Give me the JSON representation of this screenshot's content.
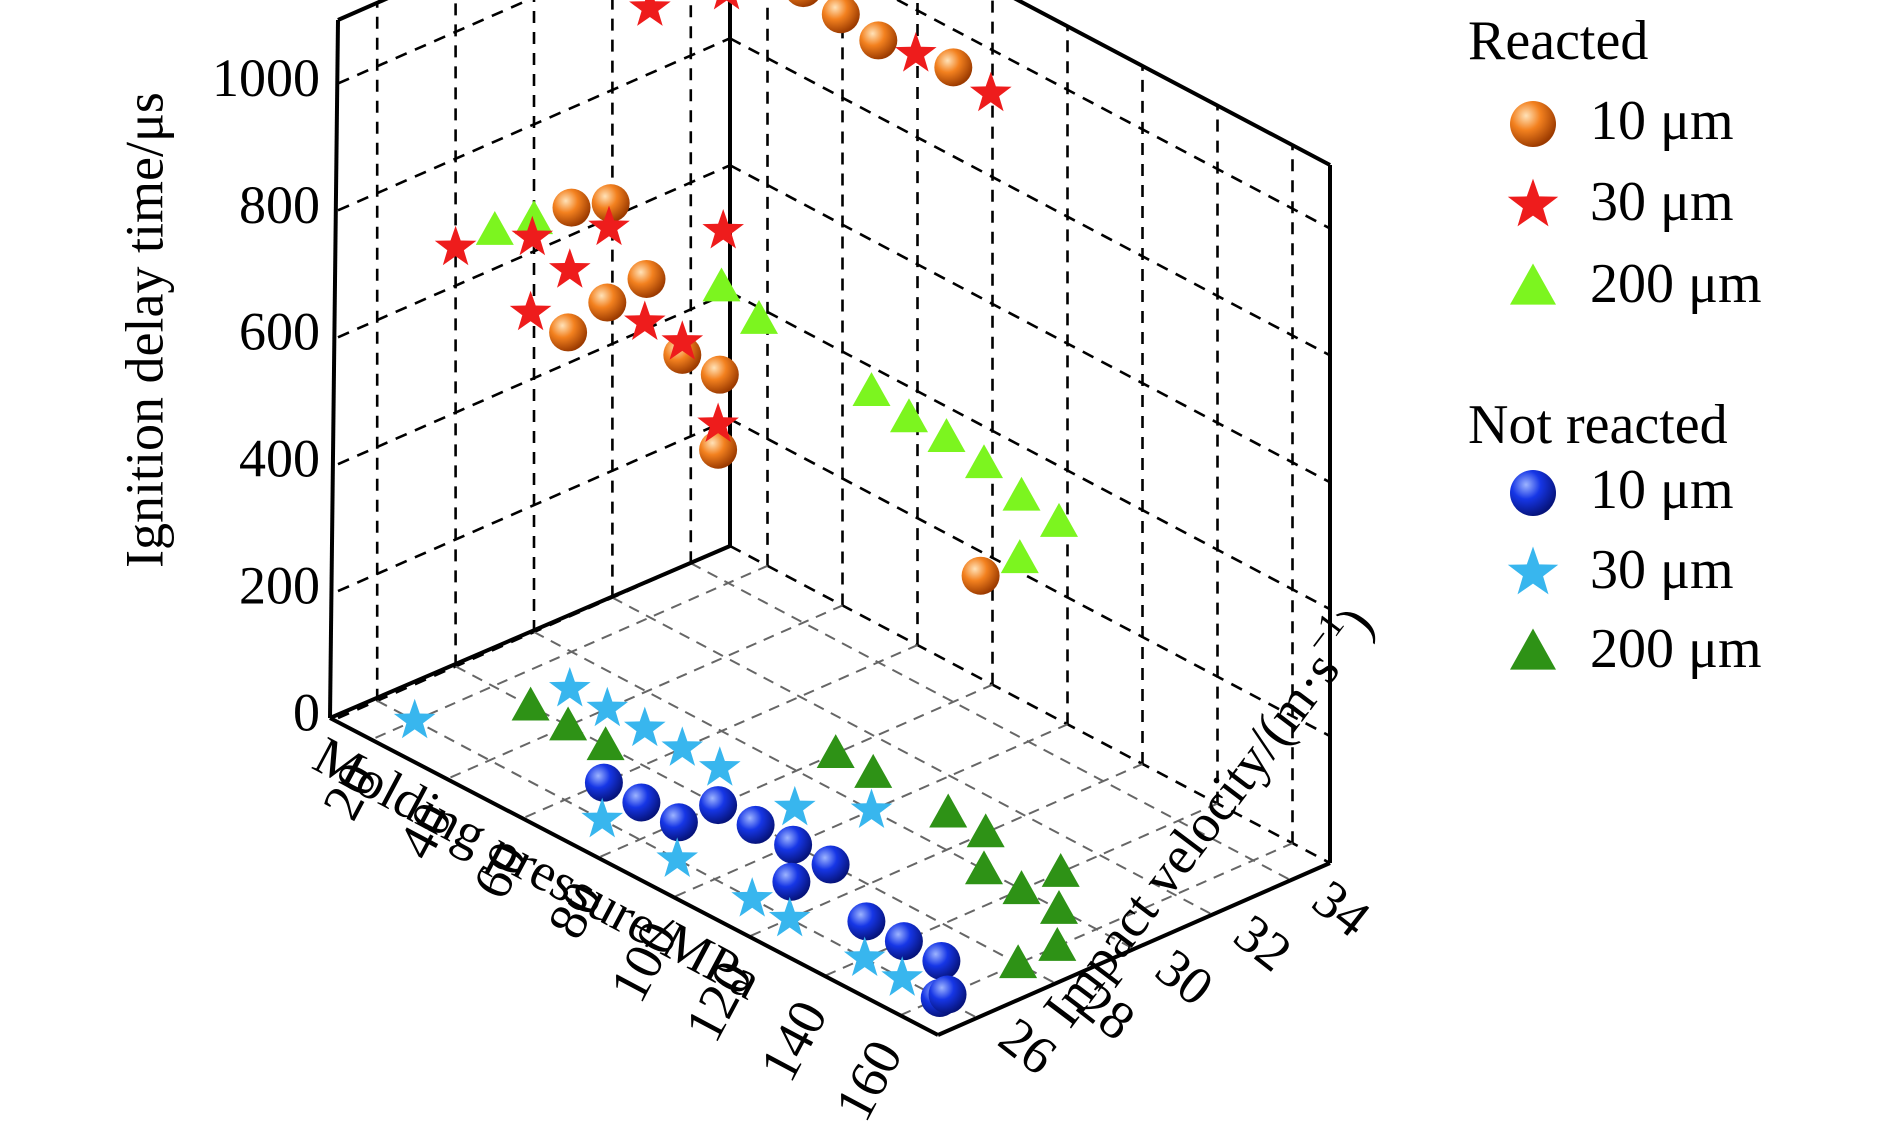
{
  "chart_data": {
    "type": "scatter",
    "projection": "3d",
    "xlabel": "Molding pressure/MPa",
    "ylabel": "Impact velocity/(m·s",
    "ylabel_sup": "−1",
    "ylabel_close": ")",
    "zlabel": "Ignition delay time/μs",
    "x_ticks": [
      "20",
      "40",
      "60",
      "80",
      "100",
      "120",
      "140",
      "160"
    ],
    "y_ticks": [
      "26",
      "28",
      "30",
      "32",
      "34"
    ],
    "z_ticks": [
      "0",
      "200",
      "400",
      "600",
      "800",
      "1000"
    ],
    "xlim": [
      10,
      170
    ],
    "ylim": [
      25,
      35
    ],
    "zlim": [
      0,
      1100
    ],
    "grid": true,
    "legend_placement": "right",
    "legend_groups": [
      {
        "title": "Reacted",
        "series": [
          0,
          1,
          2
        ]
      },
      {
        "title": "Not reacted",
        "series": [
          3,
          4,
          5
        ]
      }
    ],
    "series": [
      {
        "name": "10 μm",
        "group": "Reacted",
        "marker": "sphere",
        "color": "#f07a1e",
        "points": [
          [
            20,
            34,
            1010
          ],
          [
            40,
            34,
            1000
          ],
          [
            60,
            34,
            980
          ],
          [
            50,
            34,
            990
          ],
          [
            80,
            34,
            1000
          ],
          [
            20,
            30,
            700
          ],
          [
            20,
            31,
            680
          ],
          [
            40,
            30,
            650
          ],
          [
            40,
            29,
            640
          ],
          [
            40,
            28,
            620
          ],
          [
            60,
            29,
            620
          ],
          [
            70,
            29,
            620
          ],
          [
            80,
            28,
            560
          ],
          [
            150,
            28,
            580
          ]
        ]
      },
      {
        "name": "30 μm",
        "group": "Reacted",
        "marker": "star",
        "color": "#ee1c1c",
        "points": [
          [
            20,
            32,
            960
          ],
          [
            30,
            34,
            1000
          ],
          [
            30,
            33,
            990
          ],
          [
            70,
            34,
            990
          ],
          [
            90,
            34,
            990
          ],
          [
            10,
            28,
            660
          ],
          [
            20,
            29,
            680
          ],
          [
            30,
            30,
            700
          ],
          [
            30,
            29,
            660
          ],
          [
            30,
            28,
            620
          ],
          [
            50,
            31,
            730
          ],
          [
            50,
            29,
            640
          ],
          [
            60,
            29,
            640
          ],
          [
            80,
            28,
            600
          ]
        ]
      },
      {
        "name": "200 μm",
        "group": "Reacted",
        "marker": "triangle",
        "color": "#7cf51f",
        "points": [
          [
            10,
            30,
            650
          ],
          [
            10,
            29,
            660
          ],
          [
            60,
            30,
            700
          ],
          [
            70,
            30,
            680
          ],
          [
            100,
            30,
            660
          ],
          [
            110,
            30,
            650
          ],
          [
            120,
            30,
            650
          ],
          [
            130,
            30,
            640
          ],
          [
            140,
            30,
            620
          ],
          [
            150,
            30,
            610
          ],
          [
            150,
            29,
            580
          ]
        ]
      },
      {
        "name": "10 μm",
        "group": "Not reacted",
        "marker": "sphere",
        "color": "#1133dd",
        "points": [
          [
            60,
            27,
            0
          ],
          [
            70,
            27,
            0
          ],
          [
            80,
            27,
            0
          ],
          [
            80,
            28,
            0
          ],
          [
            90,
            28,
            0
          ],
          [
            100,
            28,
            0
          ],
          [
            110,
            28,
            0
          ],
          [
            110,
            27,
            0
          ],
          [
            130,
            27,
            0
          ],
          [
            140,
            27,
            0
          ],
          [
            150,
            27,
            0
          ],
          [
            160,
            26,
            0
          ],
          [
            160,
            26.2,
            0
          ]
        ]
      },
      {
        "name": "30 μm",
        "group": "Not reacted",
        "marker": "star",
        "color": "#38b6ee",
        "points": [
          [
            20,
            26,
            0
          ],
          [
            30,
            29,
            0
          ],
          [
            40,
            29,
            0
          ],
          [
            50,
            29,
            0
          ],
          [
            60,
            29,
            0
          ],
          [
            70,
            29,
            0
          ],
          [
            90,
            29,
            0
          ],
          [
            100,
            30,
            0
          ],
          [
            70,
            26,
            0
          ],
          [
            90,
            26,
            0
          ],
          [
            110,
            26,
            0
          ],
          [
            120,
            26,
            0
          ],
          [
            140,
            26,
            0
          ],
          [
            150,
            26,
            0
          ]
        ]
      },
      {
        "name": "200 μm",
        "group": "Not reacted",
        "marker": "triangle",
        "color": "#2e9216",
        "points": [
          [
            30,
            28,
            0
          ],
          [
            40,
            28,
            0
          ],
          [
            50,
            28,
            0
          ],
          [
            80,
            31,
            0
          ],
          [
            90,
            31,
            0
          ],
          [
            110,
            31,
            0
          ],
          [
            120,
            31,
            0
          ],
          [
            130,
            30,
            0
          ],
          [
            140,
            31,
            0
          ],
          [
            140,
            30,
            0
          ],
          [
            150,
            30,
            0
          ],
          [
            160,
            28,
            0
          ],
          [
            160,
            29,
            0
          ]
        ]
      }
    ]
  }
}
